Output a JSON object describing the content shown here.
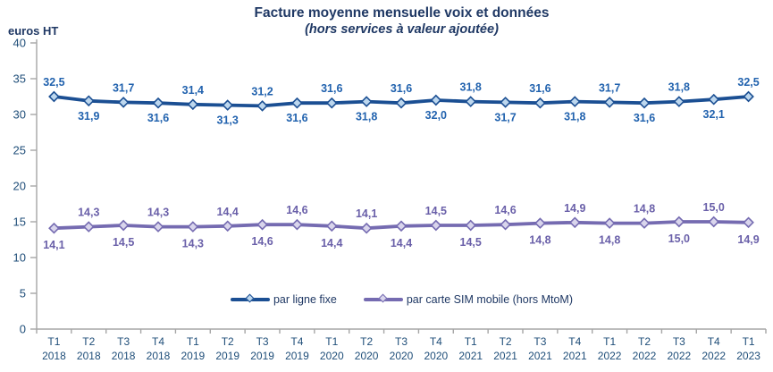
{
  "header": {
    "title": "Facture moyenne mensuelle voix et données",
    "subtitle": "(hors services à valeur ajoutée)",
    "y_axis_unit": "euros HT"
  },
  "legend": {
    "items": [
      {
        "label": "par ligne fixe"
      },
      {
        "label": "par carte SIM mobile (hors MtoM)"
      }
    ]
  },
  "colors": {
    "title_text": "#1F3864",
    "axis_line": "#A6A6A6",
    "axis_text": "#1F4E79",
    "fixed_line": "#1B4F93",
    "fixed_marker_fill": "#BDD7EE",
    "fixed_label": "#2162AE",
    "mobile_line": "#756BB1",
    "mobile_marker_fill": "#D9D5EC",
    "mobile_label": "#6A60A9"
  },
  "chart_data": {
    "type": "line",
    "title": "Facture moyenne mensuelle voix et données",
    "subtitle": "(hors services à valeur ajoutée)",
    "ylabel": "euros HT",
    "xlabel": "",
    "ylim": [
      0,
      40
    ],
    "yticks": [
      0,
      5,
      10,
      15,
      20,
      25,
      30,
      35,
      40
    ],
    "grid": false,
    "legend_position": "bottom-center",
    "decimal_separator": ",",
    "categories": [
      "T1 2018",
      "T2 2018",
      "T3 2018",
      "T4 2018",
      "T1 2019",
      "T2 2019",
      "T3 2019",
      "T4 2019",
      "T1 2020",
      "T2 2020",
      "T3 2020",
      "T4 2020",
      "T1 2021",
      "T2 2021",
      "T3 2021",
      "T4 2021",
      "T1 2022",
      "T2 2022",
      "T3 2022",
      "T4 2022",
      "T1 2023"
    ],
    "series": [
      {
        "name": "par ligne fixe",
        "values": [
          32.5,
          31.9,
          31.7,
          31.6,
          31.4,
          31.3,
          31.2,
          31.6,
          31.6,
          31.8,
          31.6,
          32.0,
          31.8,
          31.7,
          31.6,
          31.8,
          31.7,
          31.6,
          31.8,
          32.1,
          32.5
        ],
        "label_alternation_start": "above"
      },
      {
        "name": "par carte SIM mobile (hors MtoM)",
        "values": [
          14.1,
          14.3,
          14.5,
          14.3,
          14.3,
          14.4,
          14.6,
          14.6,
          14.4,
          14.1,
          14.4,
          14.5,
          14.5,
          14.6,
          14.8,
          14.9,
          14.8,
          14.8,
          15.0,
          15.0,
          14.9
        ],
        "label_alternation_start": "below"
      }
    ]
  }
}
